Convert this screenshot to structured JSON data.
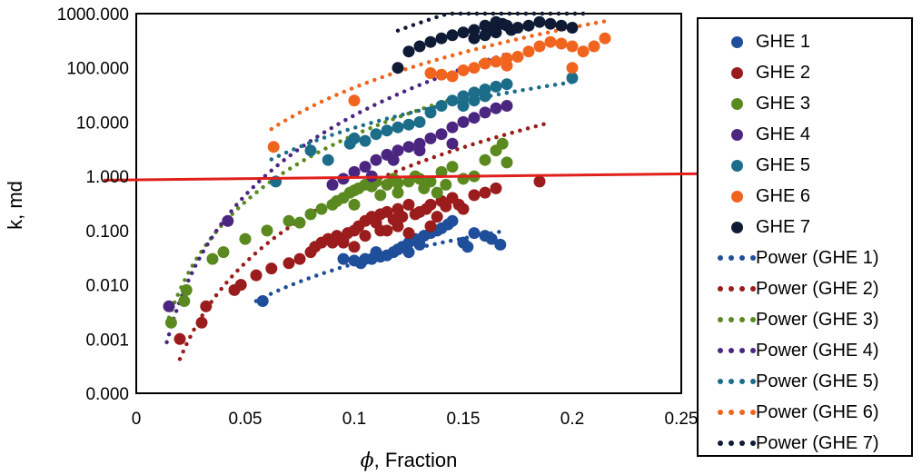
{
  "chart_data": {
    "type": "scatter",
    "title": "",
    "xlabel_symbol": "ϕ",
    "xlabel_rest": ", Fraction",
    "ylabel": "k, md",
    "x_scale": "linear",
    "y_scale": "log",
    "xlim": [
      0,
      0.25
    ],
    "ylim": [
      0.0001,
      1000
    ],
    "x_ticks": [
      {
        "value": 0,
        "label": "0"
      },
      {
        "value": 0.05,
        "label": "0.05"
      },
      {
        "value": 0.1,
        "label": "0.1"
      },
      {
        "value": 0.15,
        "label": "0.15"
      },
      {
        "value": 0.2,
        "label": "0.2"
      },
      {
        "value": 0.25,
        "label": "0.25"
      }
    ],
    "y_ticks": [
      {
        "value": 0.0001,
        "label": "0.000"
      },
      {
        "value": 0.001,
        "label": "0.001"
      },
      {
        "value": 0.01,
        "label": "0.010"
      },
      {
        "value": 0.1,
        "label": "0.100"
      },
      {
        "value": 1,
        "label": "1.000"
      },
      {
        "value": 10,
        "label": "10.000"
      },
      {
        "value": 100,
        "label": "100.000"
      },
      {
        "value": 1000,
        "label": "1000.000"
      }
    ],
    "reference_line": {
      "color": "#e0201b",
      "from": {
        "x": -0.015,
        "y": 0.85
      },
      "to": {
        "x": 0.262,
        "y": 1.12
      }
    },
    "legend_position": "right",
    "series": [
      {
        "name": "GHE 1",
        "color": "#1f4e9a",
        "points": [
          [
            0.058,
            0.005
          ],
          [
            0.095,
            0.03
          ],
          [
            0.1,
            0.028
          ],
          [
            0.103,
            0.025
          ],
          [
            0.108,
            0.03
          ],
          [
            0.112,
            0.033
          ],
          [
            0.115,
            0.035
          ],
          [
            0.118,
            0.04
          ],
          [
            0.12,
            0.045
          ],
          [
            0.122,
            0.05
          ],
          [
            0.125,
            0.06
          ],
          [
            0.128,
            0.07
          ],
          [
            0.13,
            0.055
          ],
          [
            0.132,
            0.08
          ],
          [
            0.135,
            0.09
          ],
          [
            0.138,
            0.1
          ],
          [
            0.14,
            0.11
          ],
          [
            0.143,
            0.13
          ],
          [
            0.145,
            0.15
          ],
          [
            0.15,
            0.06
          ],
          [
            0.152,
            0.05
          ],
          [
            0.155,
            0.09
          ],
          [
            0.16,
            0.08
          ],
          [
            0.163,
            0.07
          ],
          [
            0.167,
            0.055
          ],
          [
            0.11,
            0.04
          ],
          [
            0.105,
            0.03
          ],
          [
            0.125,
            0.04
          ]
        ],
        "trend": {
          "a": 10.93,
          "b": 2.65,
          "x_range": [
            0.055,
            0.168
          ]
        }
      },
      {
        "name": "GHE 2",
        "color": "#9b1c1c",
        "points": [
          [
            0.02,
            0.001
          ],
          [
            0.03,
            0.002
          ],
          [
            0.032,
            0.004
          ],
          [
            0.045,
            0.008
          ],
          [
            0.048,
            0.01
          ],
          [
            0.055,
            0.015
          ],
          [
            0.062,
            0.02
          ],
          [
            0.07,
            0.025
          ],
          [
            0.075,
            0.03
          ],
          [
            0.08,
            0.04
          ],
          [
            0.082,
            0.05
          ],
          [
            0.085,
            0.06
          ],
          [
            0.088,
            0.07
          ],
          [
            0.09,
            0.06
          ],
          [
            0.092,
            0.08
          ],
          [
            0.095,
            0.07
          ],
          [
            0.097,
            0.09
          ],
          [
            0.1,
            0.1
          ],
          [
            0.102,
            0.12
          ],
          [
            0.105,
            0.15
          ],
          [
            0.108,
            0.18
          ],
          [
            0.11,
            0.14
          ],
          [
            0.112,
            0.2
          ],
          [
            0.115,
            0.22
          ],
          [
            0.118,
            0.16
          ],
          [
            0.12,
            0.25
          ],
          [
            0.122,
            0.18
          ],
          [
            0.125,
            0.3
          ],
          [
            0.128,
            0.2
          ],
          [
            0.13,
            0.22
          ],
          [
            0.133,
            0.25
          ],
          [
            0.135,
            0.3
          ],
          [
            0.138,
            0.18
          ],
          [
            0.14,
            0.35
          ],
          [
            0.142,
            0.28
          ],
          [
            0.145,
            0.4
          ],
          [
            0.148,
            0.3
          ],
          [
            0.15,
            0.25
          ],
          [
            0.155,
            0.45
          ],
          [
            0.16,
            0.5
          ],
          [
            0.165,
            0.6
          ],
          [
            0.185,
            0.8
          ],
          [
            0.1,
            0.05
          ],
          [
            0.112,
            0.1
          ],
          [
            0.12,
            0.12
          ],
          [
            0.125,
            0.09
          ],
          [
            0.135,
            0.12
          ],
          [
            0.095,
            0.06
          ],
          [
            0.105,
            0.08
          ],
          [
            0.115,
            0.1
          ]
        ],
        "trend": {
          "a": 16171,
          "b": 4.46,
          "x_range": [
            0.02,
            0.188
          ]
        }
      },
      {
        "name": "GHE 3",
        "color": "#5a8a1f",
        "points": [
          [
            0.016,
            0.002
          ],
          [
            0.022,
            0.005
          ],
          [
            0.023,
            0.008
          ],
          [
            0.035,
            0.03
          ],
          [
            0.04,
            0.04
          ],
          [
            0.05,
            0.07
          ],
          [
            0.06,
            0.1
          ],
          [
            0.07,
            0.15
          ],
          [
            0.075,
            0.14
          ],
          [
            0.08,
            0.2
          ],
          [
            0.085,
            0.25
          ],
          [
            0.09,
            0.3
          ],
          [
            0.092,
            0.35
          ],
          [
            0.095,
            0.4
          ],
          [
            0.098,
            0.5
          ],
          [
            0.1,
            0.55
          ],
          [
            0.102,
            0.6
          ],
          [
            0.105,
            0.7
          ],
          [
            0.108,
            0.65
          ],
          [
            0.11,
            0.8
          ],
          [
            0.115,
            0.7
          ],
          [
            0.118,
            0.9
          ],
          [
            0.12,
            0.75
          ],
          [
            0.125,
            0.8
          ],
          [
            0.128,
            1.0
          ],
          [
            0.13,
            0.9
          ],
          [
            0.135,
            0.8
          ],
          [
            0.14,
            1.2
          ],
          [
            0.145,
            1.5
          ],
          [
            0.15,
            0.9
          ],
          [
            0.155,
            1.0
          ],
          [
            0.16,
            2.0
          ],
          [
            0.165,
            3.0
          ],
          [
            0.168,
            4.0
          ],
          [
            0.17,
            1.8
          ],
          [
            0.1,
            0.3
          ],
          [
            0.112,
            0.45
          ],
          [
            0.12,
            0.5
          ],
          [
            0.132,
            0.6
          ],
          [
            0.142,
            0.7
          ],
          [
            0.138,
            0.5
          ]
        ],
        "trend": {
          "a": 71213,
          "b": 4.09,
          "x_range": [
            0.015,
            0.172
          ]
        }
      },
      {
        "name": "GHE 4",
        "color": "#4b2680",
        "points": [
          [
            0.015,
            0.004
          ],
          [
            0.042,
            0.15
          ],
          [
            0.09,
            0.7
          ],
          [
            0.095,
            0.9
          ],
          [
            0.1,
            1.2
          ],
          [
            0.105,
            1.5
          ],
          [
            0.11,
            2.0
          ],
          [
            0.115,
            2.5
          ],
          [
            0.12,
            3.0
          ],
          [
            0.125,
            3.5
          ],
          [
            0.13,
            4.0
          ],
          [
            0.135,
            5.0
          ],
          [
            0.14,
            6.0
          ],
          [
            0.145,
            8.0
          ],
          [
            0.15,
            10.0
          ],
          [
            0.155,
            12.0
          ],
          [
            0.16,
            15.0
          ],
          [
            0.165,
            18.0
          ],
          [
            0.17,
            20.0
          ],
          [
            0.108,
            1.0
          ],
          [
            0.118,
            2.0
          ],
          [
            0.13,
            3.0
          ],
          [
            0.145,
            4.0
          ]
        ],
        "trend": {
          "a": 1060000,
          "b": 4.9,
          "x_range": [
            0.014,
            0.172
          ]
        }
      },
      {
        "name": "GHE 5",
        "color": "#1c6d8a",
        "points": [
          [
            0.064,
            0.8
          ],
          [
            0.08,
            3.0
          ],
          [
            0.088,
            2.0
          ],
          [
            0.098,
            4.0
          ],
          [
            0.1,
            5.0
          ],
          [
            0.105,
            4.5
          ],
          [
            0.11,
            6.0
          ],
          [
            0.115,
            7.0
          ],
          [
            0.12,
            8.0
          ],
          [
            0.125,
            9.0
          ],
          [
            0.13,
            10.0
          ],
          [
            0.135,
            15.0
          ],
          [
            0.14,
            20.0
          ],
          [
            0.145,
            25.0
          ],
          [
            0.15,
            30.0
          ],
          [
            0.155,
            35.0
          ],
          [
            0.16,
            40.0
          ],
          [
            0.165,
            45.0
          ],
          [
            0.17,
            50.0
          ],
          [
            0.2,
            65.0
          ],
          [
            0.155,
            25.0
          ],
          [
            0.16,
            30.0
          ],
          [
            0.15,
            20.0
          ]
        ],
        "trend": {
          "a": 4940,
          "b": 2.8,
          "x_range": [
            0.062,
            0.202
          ]
        }
      },
      {
        "name": "GHE 6",
        "color": "#f0641e",
        "points": [
          [
            0.063,
            3.5
          ],
          [
            0.1,
            25.0
          ],
          [
            0.135,
            80.0
          ],
          [
            0.14,
            75.0
          ],
          [
            0.145,
            70.0
          ],
          [
            0.15,
            90.0
          ],
          [
            0.155,
            100.0
          ],
          [
            0.16,
            120.0
          ],
          [
            0.165,
            130.0
          ],
          [
            0.17,
            150.0
          ],
          [
            0.175,
            160.0
          ],
          [
            0.18,
            200.0
          ],
          [
            0.185,
            250.0
          ],
          [
            0.19,
            300.0
          ],
          [
            0.195,
            280.0
          ],
          [
            0.2,
            250.0
          ],
          [
            0.205,
            200.0
          ],
          [
            0.21,
            250.0
          ],
          [
            0.215,
            350.0
          ],
          [
            0.2,
            100.0
          ],
          [
            0.17,
            110.0
          ]
        ],
        "trend": {
          "a": 207000,
          "b": 3.68,
          "x_range": [
            0.062,
            0.216
          ]
        }
      },
      {
        "name": "GHE 7",
        "color": "#0f1a35",
        "points": [
          [
            0.12,
            100.0
          ],
          [
            0.125,
            200.0
          ],
          [
            0.13,
            250.0
          ],
          [
            0.135,
            300.0
          ],
          [
            0.14,
            350.0
          ],
          [
            0.145,
            400.0
          ],
          [
            0.15,
            450.0
          ],
          [
            0.155,
            500.0
          ],
          [
            0.16,
            600.0
          ],
          [
            0.162,
            550.0
          ],
          [
            0.165,
            700.0
          ],
          [
            0.168,
            650.0
          ],
          [
            0.17,
            600.0
          ],
          [
            0.172,
            500.0
          ],
          [
            0.175,
            550.0
          ],
          [
            0.18,
            600.0
          ],
          [
            0.185,
            700.0
          ],
          [
            0.19,
            650.0
          ],
          [
            0.195,
            600.0
          ],
          [
            0.2,
            550.0
          ],
          [
            0.16,
            400.0
          ],
          [
            0.155,
            350.0
          ],
          [
            0.165,
            450.0
          ]
        ],
        "trend": {
          "a": 3150000,
          "b": 4.14,
          "x_range": [
            0.12,
            0.205
          ]
        }
      }
    ]
  },
  "legend": {
    "items": [
      {
        "label": "GHE 1",
        "kind": "marker",
        "color": "#1f4e9a"
      },
      {
        "label": "GHE 2",
        "kind": "marker",
        "color": "#9b1c1c"
      },
      {
        "label": "GHE 3",
        "kind": "marker",
        "color": "#5a8a1f"
      },
      {
        "label": "GHE 4",
        "kind": "marker",
        "color": "#4b2680"
      },
      {
        "label": "GHE 5",
        "kind": "marker",
        "color": "#1c6d8a"
      },
      {
        "label": "GHE 6",
        "kind": "marker",
        "color": "#f0641e"
      },
      {
        "label": "GHE 7",
        "kind": "marker",
        "color": "#0f1a35"
      },
      {
        "label": "Power (GHE 1)",
        "kind": "dotted",
        "color": "#1f4e9a"
      },
      {
        "label": "Power (GHE 2)",
        "kind": "dotted",
        "color": "#9b1c1c"
      },
      {
        "label": "Power (GHE 3)",
        "kind": "dotted",
        "color": "#5a8a1f"
      },
      {
        "label": "Power (GHE 4)",
        "kind": "dotted",
        "color": "#4b2680"
      },
      {
        "label": "Power (GHE 5)",
        "kind": "dotted",
        "color": "#1c6d8a"
      },
      {
        "label": "Power (GHE 6)",
        "kind": "dotted",
        "color": "#f0641e"
      },
      {
        "label": "Power (GHE 7)",
        "kind": "dotted",
        "color": "#0f1a35"
      }
    ]
  }
}
